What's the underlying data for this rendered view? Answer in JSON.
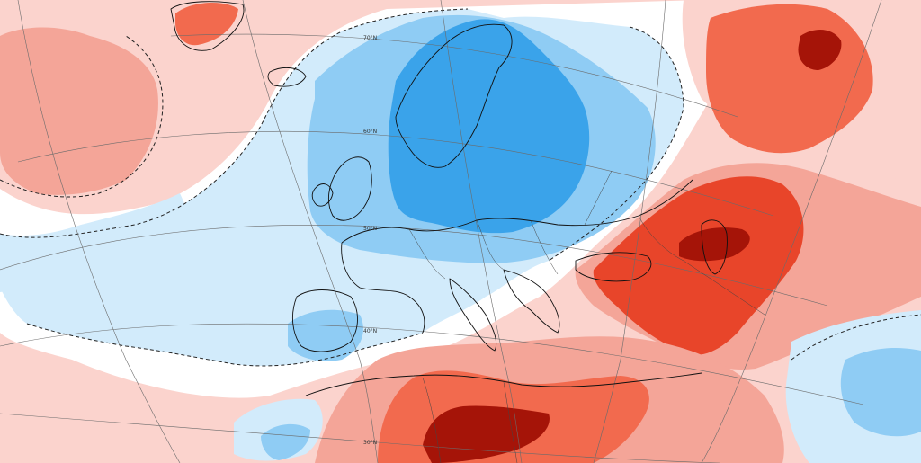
{
  "map": {
    "latitude_labels": [
      "70°N",
      "60°N",
      "50°N",
      "40°N",
      "30°N"
    ]
  },
  "colors": {
    "cold_strong": "#3aa3ea",
    "cold_mid": "#8fccf4",
    "cold_light": "#d2ebfb",
    "neutral": "#ffffff",
    "warm_light": "#fbd3cd",
    "warm_mid": "#f4a598",
    "warm_strong": "#f26a4e",
    "warm_stronger": "#e8452a",
    "warm_extreme": "#a51408"
  }
}
